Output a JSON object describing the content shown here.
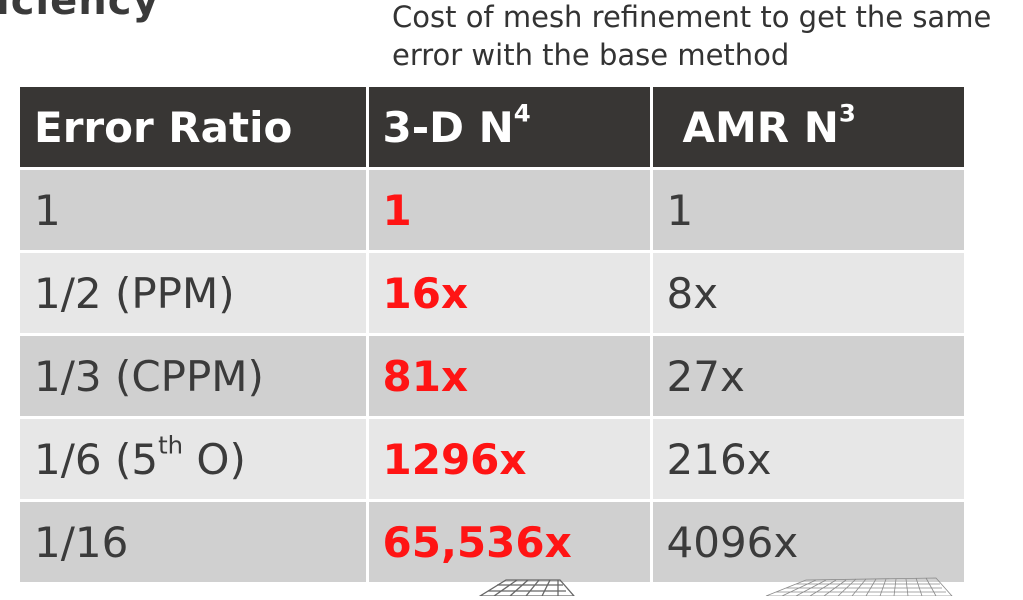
{
  "slide": {
    "title_fragment": "iciency",
    "caption": "Cost of mesh refinement to get the same error with the base method"
  },
  "table": {
    "header": {
      "error_ratio": "Error Ratio",
      "col2_base": "3-D N",
      "col2_exp": "4",
      "col3_base": "AMR N",
      "col3_exp": "3"
    },
    "rows": [
      {
        "ratio": "1",
        "ratio_sup": "",
        "ratio_tail": "",
        "n4": "1",
        "n3": "1"
      },
      {
        "ratio": "1/2 (PPM)",
        "ratio_sup": "",
        "ratio_tail": "",
        "n4": "16x",
        "n3": "8x"
      },
      {
        "ratio": "1/3 (CPPM)",
        "ratio_sup": "",
        "ratio_tail": "",
        "n4": "81x",
        "n3": "27x"
      },
      {
        "ratio": "1/6 (5",
        "ratio_sup": "th",
        "ratio_tail": " O)",
        "n4": "1296x",
        "n3": "216x"
      },
      {
        "ratio": "1/16",
        "ratio_sup": "",
        "ratio_tail": "",
        "n4": "65,536x",
        "n3": "4096x"
      }
    ]
  },
  "colors": {
    "header_bg": "#383634",
    "row_dark": "#d0d0d0",
    "row_light": "#e7e7e7",
    "highlight": "#ff1414"
  }
}
